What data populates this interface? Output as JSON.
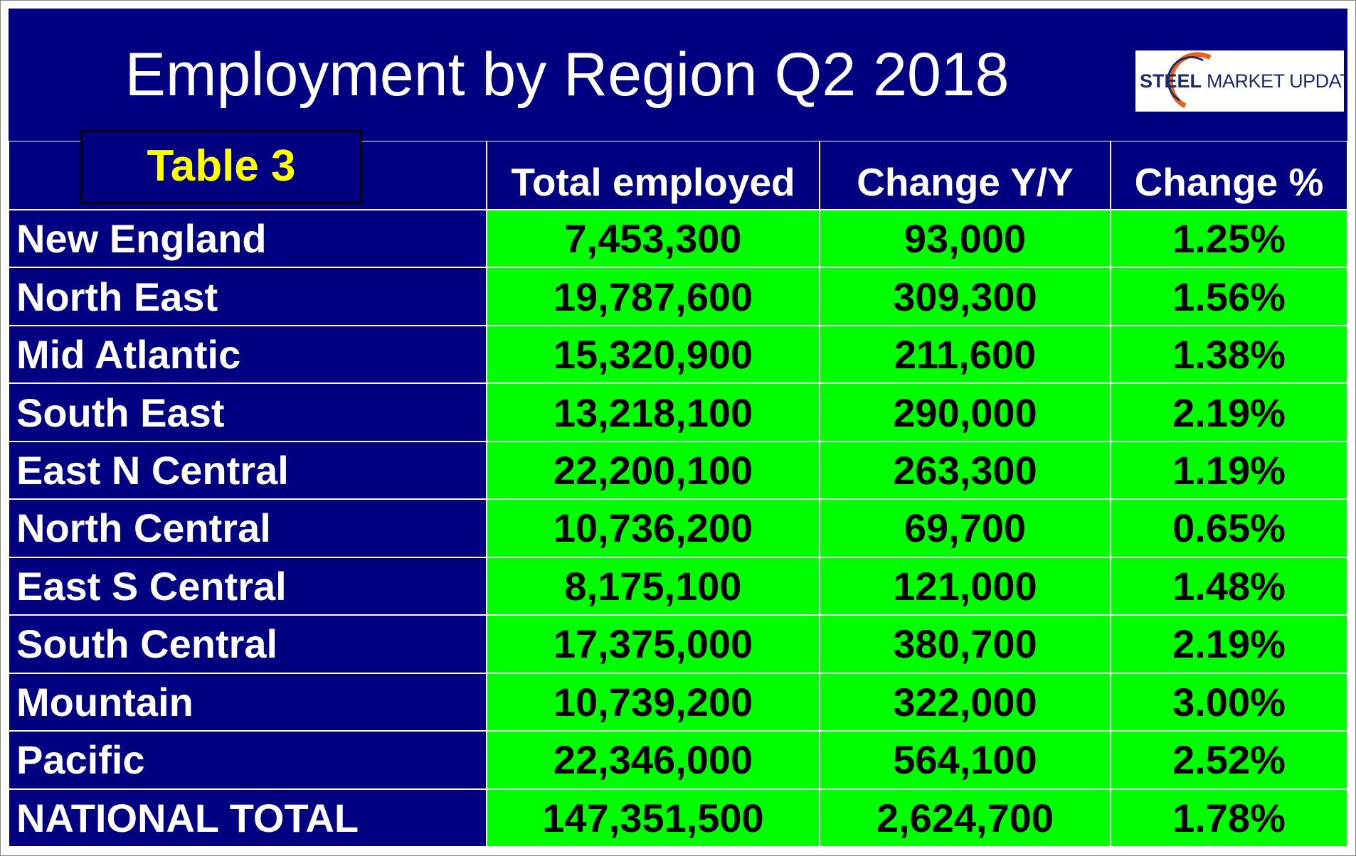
{
  "header": {
    "title": "Employment by Region Q2 2018",
    "logo": {
      "brand": "STEEL",
      "rest": "MARKET UPDATE"
    }
  },
  "table": {
    "label": "Table 3",
    "columns": [
      "Total employed",
      "Change Y/Y",
      "Change %"
    ],
    "rows": [
      [
        "New England",
        "7,453,300",
        "93,000",
        "1.25%"
      ],
      [
        "North East",
        "19,787,600",
        "309,300",
        "1.56%"
      ],
      [
        "Mid Atlantic",
        "15,320,900",
        "211,600",
        "1.38%"
      ],
      [
        "South East",
        "13,218,100",
        "290,000",
        "2.19%"
      ],
      [
        "East N Central",
        "22,200,100",
        "263,300",
        "1.19%"
      ],
      [
        "North Central",
        "10,736,200",
        "69,700",
        "0.65%"
      ],
      [
        "East S Central",
        "8,175,100",
        "121,000",
        "1.48%"
      ],
      [
        "South Central",
        "17,375,000",
        "380,700",
        "2.19%"
      ],
      [
        "Mountain",
        "10,739,200",
        "322,000",
        "3.00%"
      ],
      [
        "Pacific",
        "22,346,000",
        "564,100",
        "2.52%"
      ],
      [
        "NATIONAL TOTAL",
        "147,351,500",
        "2,624,700",
        "1.78%"
      ]
    ]
  }
}
